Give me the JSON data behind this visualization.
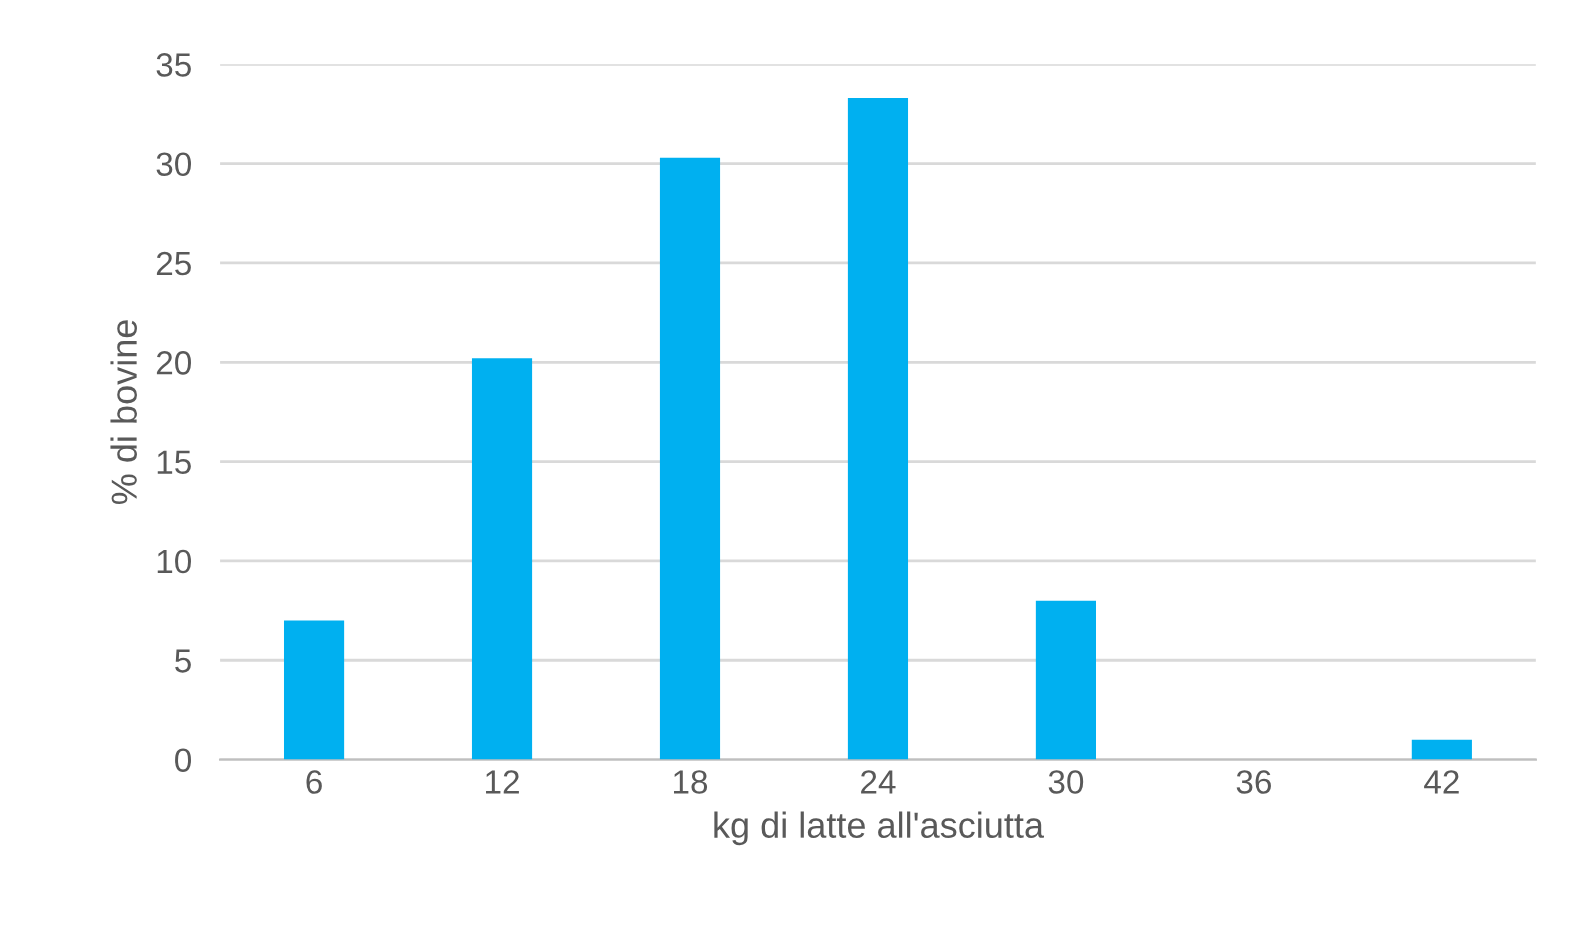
{
  "chart_data": {
    "type": "bar",
    "xlabel": "kg di latte all'asciutta",
    "ylabel": "% di bovine",
    "categories": [
      "6",
      "12",
      "18",
      "24",
      "30",
      "36",
      "42"
    ],
    "values": [
      7,
      20.2,
      30.3,
      33.3,
      8,
      0,
      1
    ],
    "color": "#00b0f0",
    "ylim": [
      0,
      35
    ],
    "yticks": [
      0,
      5,
      10,
      15,
      20,
      25,
      30,
      35
    ],
    "grid": "y",
    "legend": false
  }
}
